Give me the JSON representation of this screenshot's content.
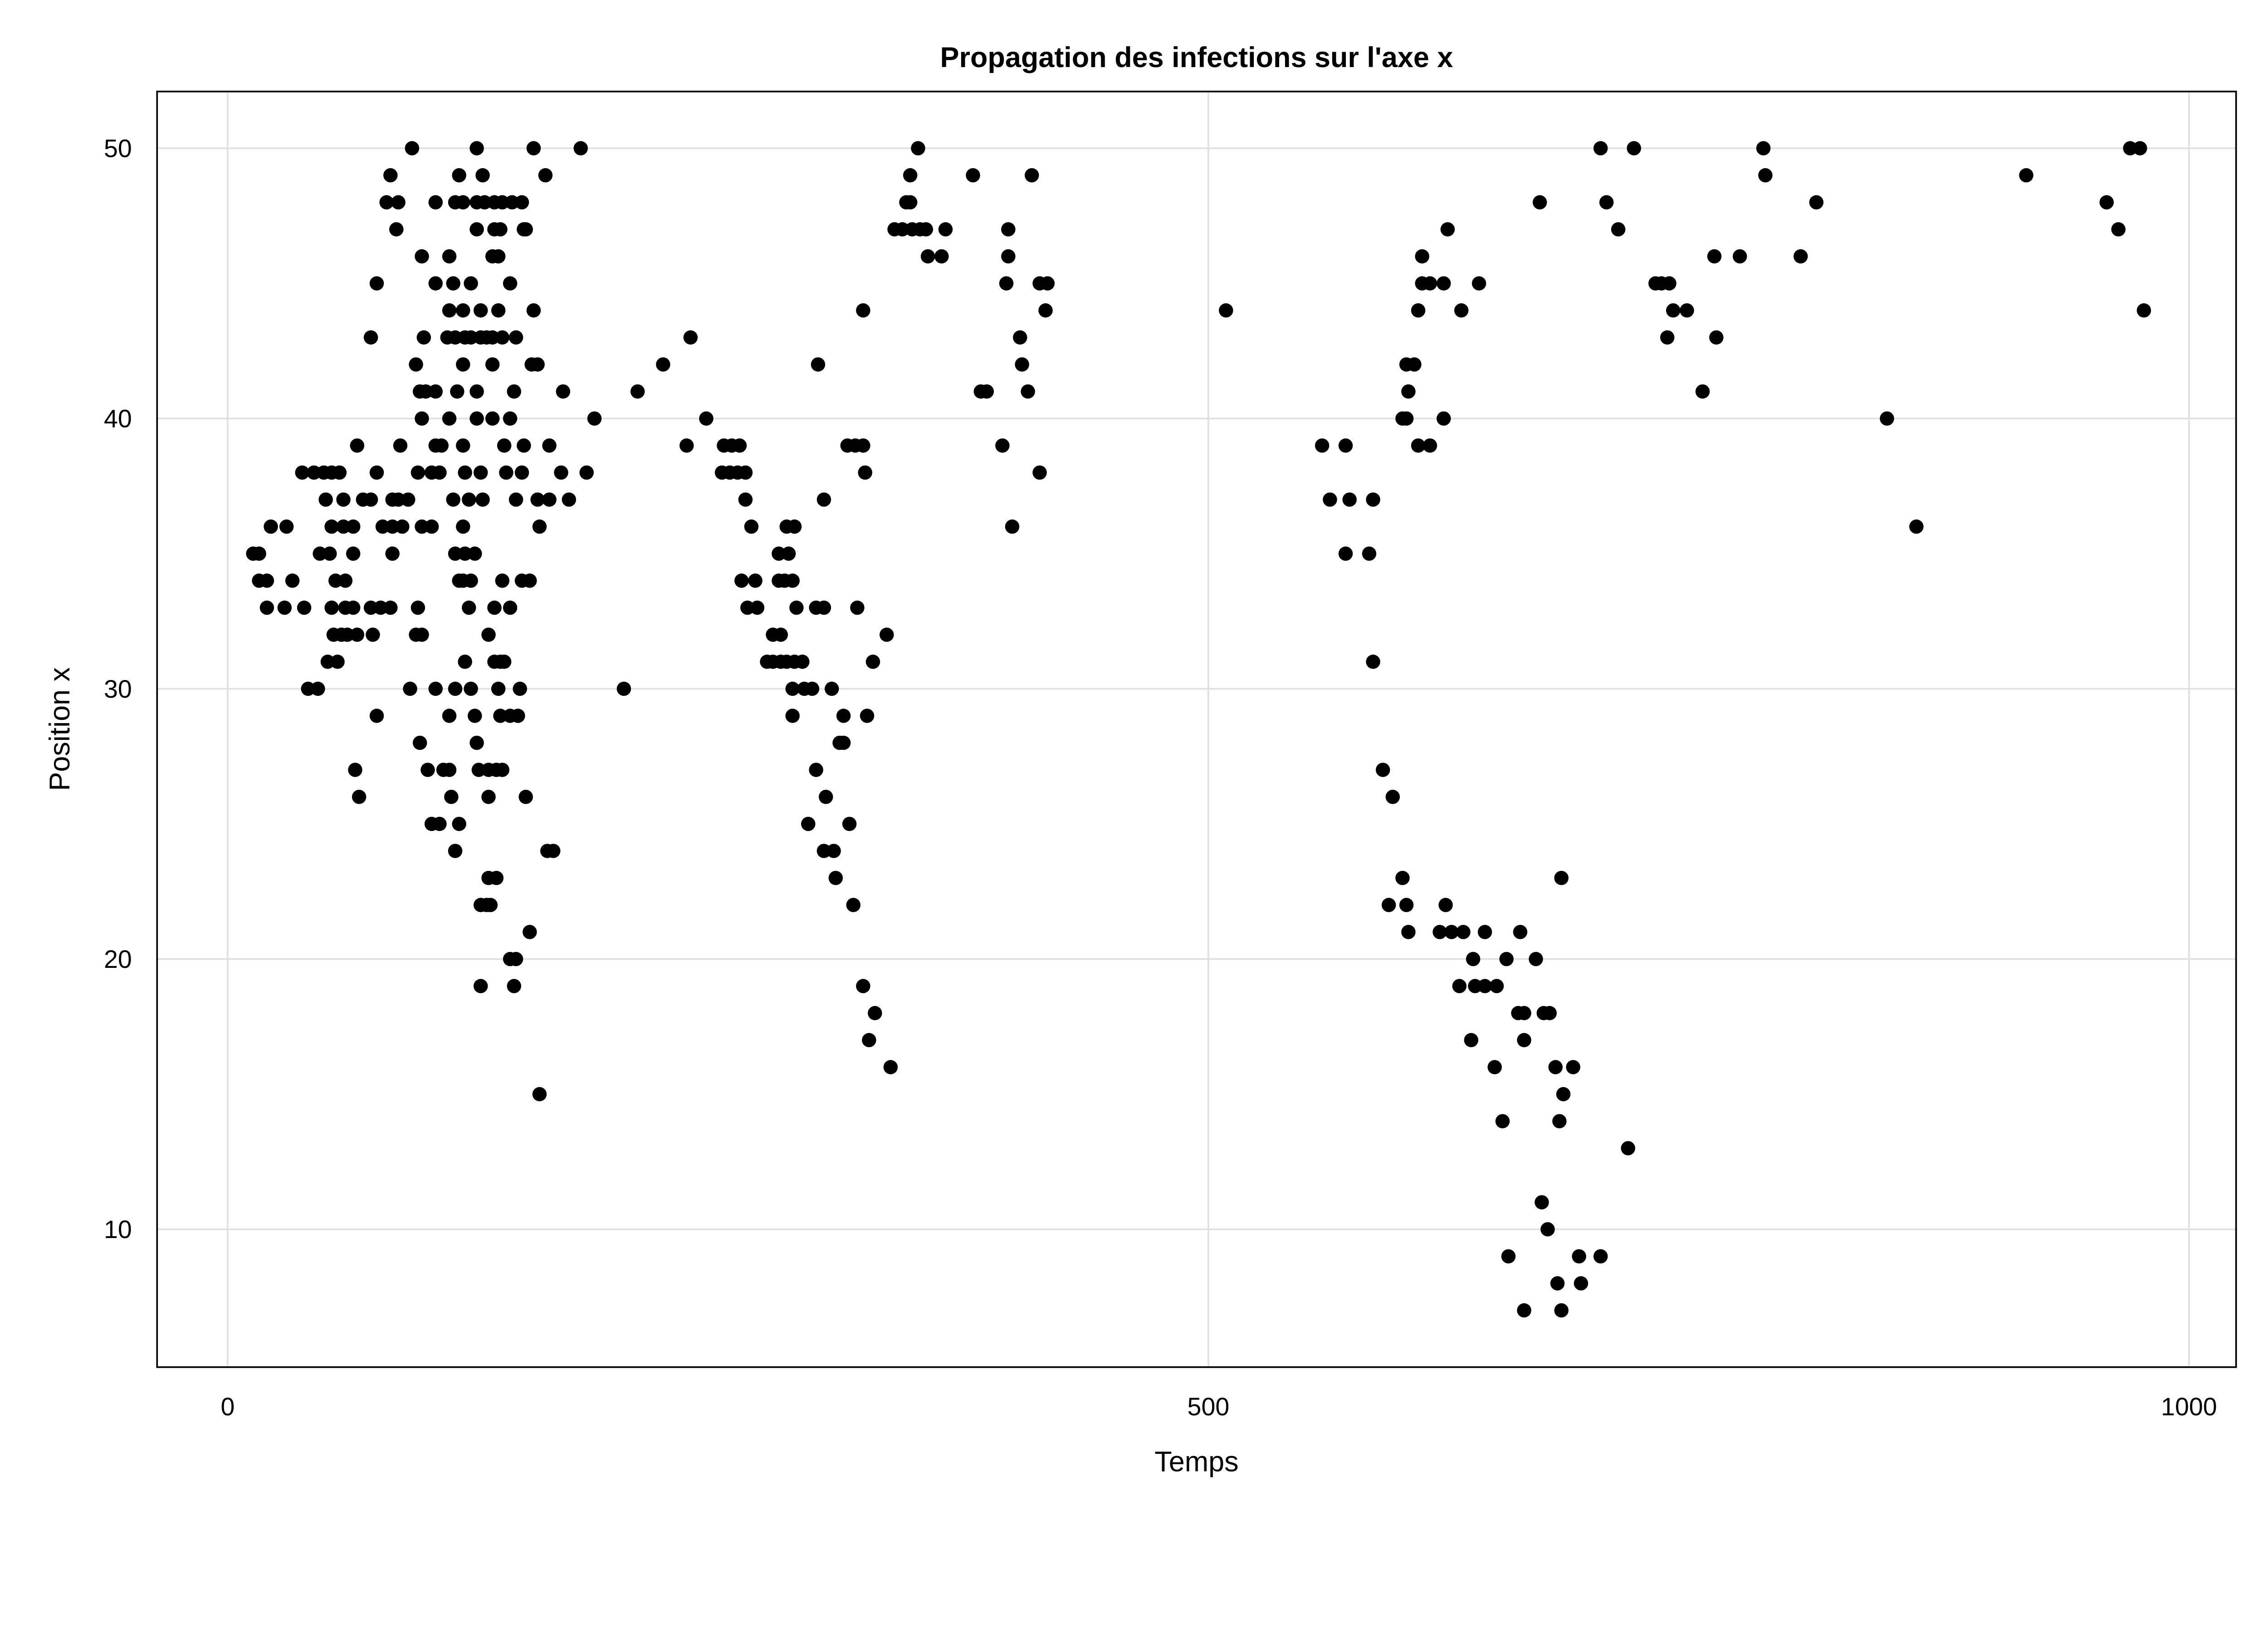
{
  "chart_data": {
    "type": "scatter",
    "title": "Propagation des infections sur l'axe x",
    "xlabel": "Temps",
    "ylabel": "Position x",
    "xlim": [
      -36,
      1024
    ],
    "ylim": [
      4.9,
      52.1
    ],
    "xticks": [
      0,
      500,
      1000
    ],
    "yticks": [
      10,
      20,
      30,
      40,
      50
    ],
    "grid": true,
    "marker_color": "#000000",
    "grid_color": "#e0e0e0",
    "rows": [
      {
        "y": 50,
        "x": [
          94,
          127,
          156,
          180,
          352,
          700,
          717,
          783,
          970,
          975
        ]
      },
      {
        "y": 49,
        "x": [
          83,
          118,
          130,
          162,
          348,
          380,
          410,
          784,
          917
        ]
      },
      {
        "y": 48,
        "x": [
          81,
          87,
          106,
          116,
          120,
          127,
          131,
          136,
          140,
          145,
          150,
          346,
          348,
          669,
          703,
          810,
          958
        ]
      },
      {
        "y": 47,
        "x": [
          86,
          127,
          136,
          139,
          151,
          152,
          340,
          344,
          349,
          353,
          356,
          366,
          398,
          622,
          709,
          964
        ]
      },
      {
        "y": 46,
        "x": [
          99,
          113,
          135,
          138,
          357,
          364,
          398,
          609,
          758,
          771,
          802
        ]
      },
      {
        "y": 45,
        "x": [
          76,
          106,
          115,
          124,
          144,
          397,
          414,
          418,
          609,
          613,
          620,
          638,
          728,
          731,
          735
        ]
      },
      {
        "y": 44,
        "x": [
          113,
          120,
          129,
          138,
          156,
          324,
          417,
          509,
          607,
          629,
          737,
          744,
          977
        ]
      },
      {
        "y": 43,
        "x": [
          73,
          100,
          112,
          116,
          121,
          124,
          129,
          132,
          135,
          140,
          147,
          236,
          404,
          734,
          759
        ]
      },
      {
        "y": 42,
        "x": [
          96,
          120,
          135,
          155,
          158,
          222,
          301,
          405,
          601,
          605
        ]
      },
      {
        "y": 41,
        "x": [
          98,
          101,
          106,
          117,
          127,
          146,
          171,
          209,
          384,
          387,
          408,
          602,
          752
        ]
      },
      {
        "y": 40,
        "x": [
          99,
          113,
          127,
          135,
          144,
          187,
          244,
          599,
          601,
          620,
          846
        ]
      },
      {
        "y": 39,
        "x": [
          66,
          88,
          106,
          109,
          120,
          141,
          151,
          164,
          234,
          253,
          257,
          261,
          316,
          320,
          324,
          395,
          558,
          570,
          607,
          613
        ]
      },
      {
        "y": 38,
        "x": [
          38,
          44,
          49,
          53,
          57,
          76,
          97,
          104,
          108,
          121,
          129,
          142,
          150,
          170,
          183,
          252,
          256,
          260,
          264,
          325,
          414
        ]
      },
      {
        "y": 37,
        "x": [
          50,
          59,
          69,
          73,
          84,
          87,
          92,
          115,
          123,
          130,
          147,
          158,
          164,
          174,
          264,
          304,
          562,
          572,
          584
        ]
      },
      {
        "y": 36,
        "x": [
          22,
          30,
          53,
          59,
          64,
          79,
          84,
          89,
          99,
          104,
          120,
          159,
          267,
          285,
          289,
          400,
          861
        ]
      },
      {
        "y": 35,
        "x": [
          13,
          16,
          47,
          52,
          64,
          84,
          116,
          121,
          126,
          281,
          286,
          570,
          582
        ]
      },
      {
        "y": 34,
        "x": [
          16,
          20,
          33,
          55,
          60,
          118,
          120,
          124,
          140,
          150,
          154,
          262,
          269,
          281,
          284,
          288
        ]
      },
      {
        "y": 33,
        "x": [
          20,
          29,
          39,
          53,
          60,
          64,
          73,
          78,
          83,
          97,
          123,
          136,
          144,
          265,
          270,
          290,
          300,
          304,
          321
        ]
      },
      {
        "y": 32,
        "x": [
          54,
          58,
          61,
          66,
          74,
          96,
          99,
          133,
          278,
          282,
          336
        ]
      },
      {
        "y": 31,
        "x": [
          51,
          56,
          121,
          136,
          139,
          141,
          275,
          278,
          282,
          285,
          289,
          293,
          329,
          584
        ]
      },
      {
        "y": 30,
        "x": [
          41,
          46,
          93,
          106,
          116,
          124,
          138,
          149,
          202,
          288,
          294,
          298,
          308
        ]
      },
      {
        "y": 29,
        "x": [
          76,
          113,
          126,
          139,
          144,
          148,
          288,
          314,
          326
        ]
      },
      {
        "y": 28,
        "x": [
          98,
          127,
          312,
          314
        ]
      },
      {
        "y": 27,
        "x": [
          65,
          102,
          110,
          113,
          128,
          133,
          137,
          140,
          300,
          589
        ]
      },
      {
        "y": 26,
        "x": [
          67,
          114,
          133,
          152,
          305,
          594
        ]
      },
      {
        "y": 25,
        "x": [
          104,
          108,
          118,
          296,
          317
        ]
      },
      {
        "y": 24,
        "x": [
          116,
          163,
          166,
          304,
          309
        ]
      },
      {
        "y": 23,
        "x": [
          133,
          137,
          310,
          599,
          680
        ]
      },
      {
        "y": 22,
        "x": [
          129,
          132,
          134,
          319,
          592,
          601,
          621
        ]
      },
      {
        "y": 21,
        "x": [
          154,
          602,
          618,
          624,
          630,
          641,
          659
        ]
      },
      {
        "y": 20,
        "x": [
          144,
          147,
          635,
          652,
          667
        ]
      },
      {
        "y": 19,
        "x": [
          129,
          146,
          324,
          628,
          636,
          641,
          647
        ]
      },
      {
        "y": 18,
        "x": [
          330,
          658,
          661,
          671,
          674
        ]
      },
      {
        "y": 17,
        "x": [
          327,
          634,
          661
        ]
      },
      {
        "y": 16,
        "x": [
          338,
          646,
          677,
          686
        ]
      },
      {
        "y": 15,
        "x": [
          159,
          681
        ]
      },
      {
        "y": 14,
        "x": [
          650,
          679
        ]
      },
      {
        "y": 13,
        "x": [
          714
        ]
      },
      {
        "y": 11,
        "x": [
          670
        ]
      },
      {
        "y": 10,
        "x": [
          673
        ]
      },
      {
        "y": 9,
        "x": [
          653,
          689,
          700
        ]
      },
      {
        "y": 8,
        "x": [
          678,
          690
        ]
      },
      {
        "y": 7,
        "x": [
          661,
          680
        ]
      }
    ]
  }
}
